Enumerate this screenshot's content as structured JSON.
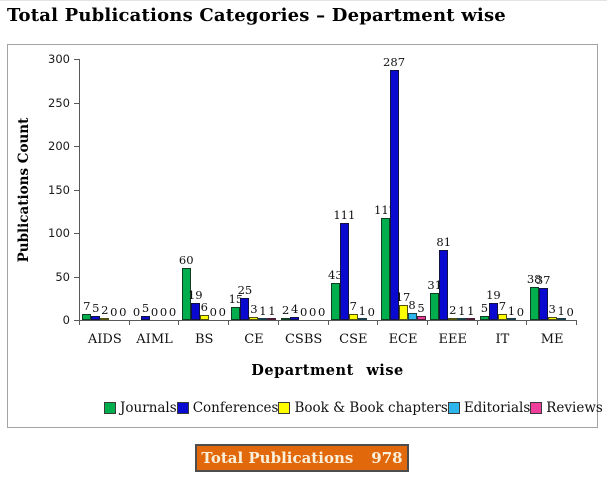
{
  "title": "Total Publications Categories – Department wise",
  "chart_data": {
    "type": "bar",
    "title": "Total Publications Categories – Department wise",
    "xlabel": "Department wise",
    "ylabel": "Publications Count",
    "ylim": [
      0,
      300
    ],
    "yticks": [
      0,
      50,
      100,
      150,
      200,
      250,
      300
    ],
    "grid": false,
    "legend_position": "bottom",
    "bar_value_labels": true,
    "categories": [
      "AIDS",
      "AIML",
      "BS",
      "CE",
      "CSBS",
      "CSE",
      "ECE",
      "EEE",
      "IT",
      "ME"
    ],
    "series": [
      {
        "name": "Journals",
        "color": "#00AE4E",
        "values": [
          7,
          0,
          60,
          15,
          2,
          43,
          117,
          31,
          5,
          38
        ]
      },
      {
        "name": "Conferences",
        "color": "#0909CF",
        "values": [
          5,
          5,
          19,
          25,
          4,
          111,
          287,
          81,
          19,
          37
        ]
      },
      {
        "name": "Book & Book chapters",
        "color": "#FFFF00",
        "values": [
          2,
          0,
          6,
          3,
          0,
          7,
          17,
          2,
          7,
          3
        ]
      },
      {
        "name": "Editorials",
        "color": "#2EB6EA",
        "values": [
          0,
          0,
          0,
          1,
          0,
          1,
          8,
          1,
          1,
          1
        ]
      },
      {
        "name": "Reviews",
        "color": "#EE3D9A",
        "values": [
          0,
          0,
          0,
          1,
          0,
          0,
          5,
          1,
          0,
          0
        ]
      }
    ]
  },
  "banner": {
    "label": "Total Publications",
    "value": "978",
    "bg_color": "#E2690B",
    "text_color": "#FAEFD9"
  }
}
